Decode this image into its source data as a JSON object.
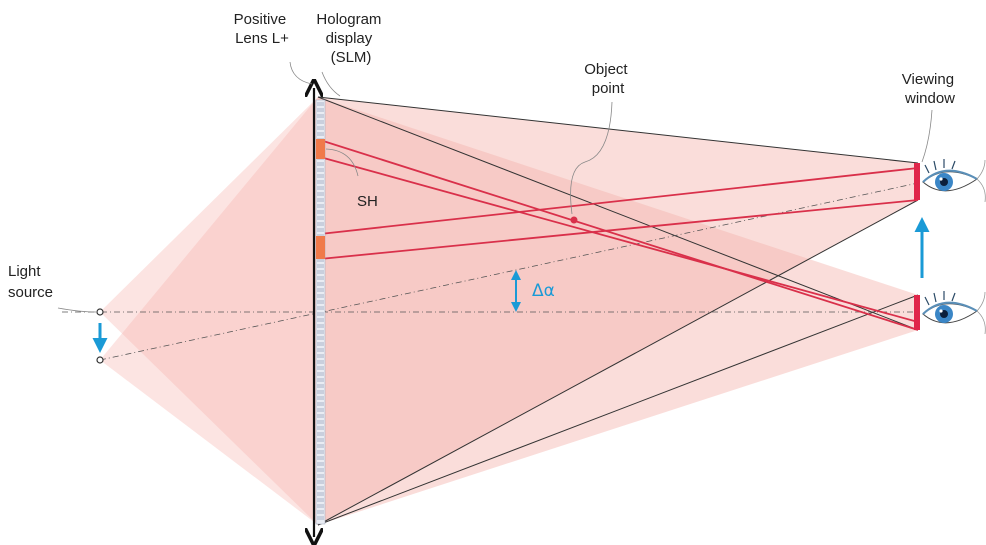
{
  "labels": {
    "positive_lens": [
      "Positive",
      "Lens L+"
    ],
    "hologram_display": [
      "Hologram",
      "display",
      "(SLM)"
    ],
    "object_point": [
      "Object",
      "point"
    ],
    "viewing_window": [
      "Viewing",
      "window"
    ],
    "sh": "SH",
    "light_source": [
      "Light",
      "source"
    ],
    "delta_alpha": "Δα"
  },
  "colors": {
    "beam_fill": "#f5b3ac",
    "ray_red": "#d9304a",
    "outline": "#333333",
    "arrow_blue": "#1a9ad6",
    "sub_hologram": "#f07a4a",
    "slm_pixel": "#c9cfdd",
    "viewing_window": "#e0264a",
    "eye_iris": "#3b86c6"
  },
  "icons": [
    "eye-icon",
    "lens-double-arrow",
    "blue-arrow-down",
    "blue-arrow-up",
    "delta-alpha-arrow"
  ]
}
